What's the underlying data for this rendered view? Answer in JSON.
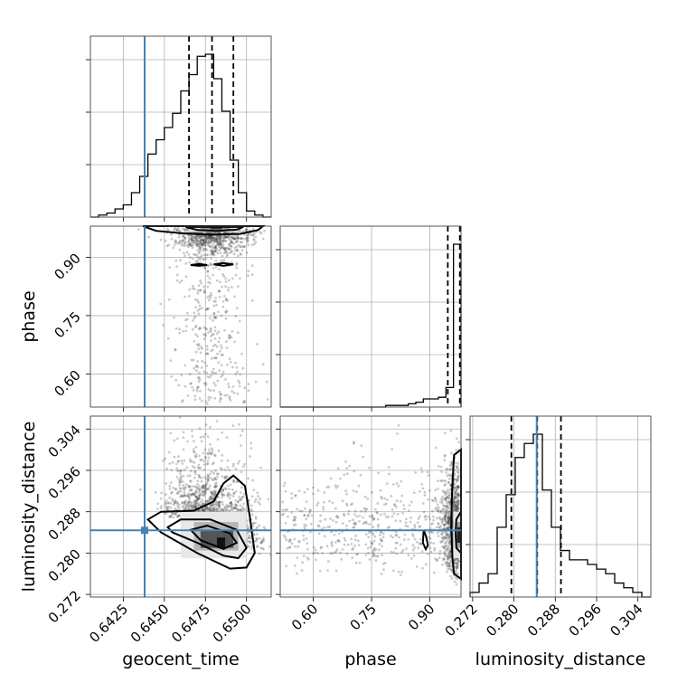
{
  "chart_data": {
    "type": "corner",
    "parameters": [
      "geocent_time",
      "phase",
      "luminosity_distance"
    ],
    "truths": {
      "geocent_time": 0.6438,
      "luminosity_distance": 0.2844
    },
    "axes": {
      "geocent_time": {
        "range": [
          0.6405,
          0.6515
        ],
        "ticks": [
          0.6425,
          0.645,
          0.6475,
          0.65
        ],
        "tick_labels": [
          "0.6425",
          "0.6450",
          "0.6475",
          "0.6500"
        ]
      },
      "phase": {
        "range": [
          0.515,
          0.98
        ],
        "ticks": [
          0.6,
          0.75,
          0.9
        ],
        "tick_labels": [
          "0.60",
          "0.75",
          "0.90"
        ]
      },
      "luminosity_distance": {
        "range": [
          0.2715,
          0.3065
        ],
        "ticks": [
          0.272,
          0.28,
          0.288,
          0.296,
          0.304
        ],
        "tick_labels": [
          "0.272",
          "0.280",
          "0.288",
          "0.296",
          "0.304"
        ]
      }
    },
    "marginals": {
      "geocent_time": {
        "quantiles": [
          0.6465,
          0.6479,
          0.6492
        ],
        "bins": [
          0.6405,
          0.6515
        ],
        "counts": [
          0,
          1,
          2,
          4,
          6,
          12,
          20,
          31,
          38,
          44,
          51,
          62,
          70,
          79,
          80,
          68,
          52,
          28,
          12,
          3,
          1,
          0
        ]
      },
      "phase": {
        "quantiles": [
          0.946,
          0.977,
          0.979
        ],
        "bins": [
          0.515,
          0.98
        ],
        "counts": [
          0,
          0,
          0,
          0,
          0,
          0,
          0,
          0,
          0,
          0,
          0,
          0,
          0,
          0,
          1,
          1,
          1,
          2,
          3,
          5,
          5,
          6,
          12,
          100
        ]
      },
      "luminosity_distance": {
        "quantiles": [
          0.2795,
          0.2845,
          0.2891
        ],
        "bins": [
          0.2715,
          0.3065
        ],
        "counts": [
          1,
          3,
          5,
          15,
          22,
          30,
          33,
          35,
          23,
          15,
          10,
          8,
          8,
          7,
          6,
          5,
          3,
          2,
          1,
          0
        ]
      }
    },
    "pairs": [
      {
        "x": "geocent_time",
        "y": "phase"
      },
      {
        "x": "geocent_time",
        "y": "luminosity_distance"
      },
      {
        "x": "phase",
        "y": "luminosity_distance"
      }
    ]
  }
}
